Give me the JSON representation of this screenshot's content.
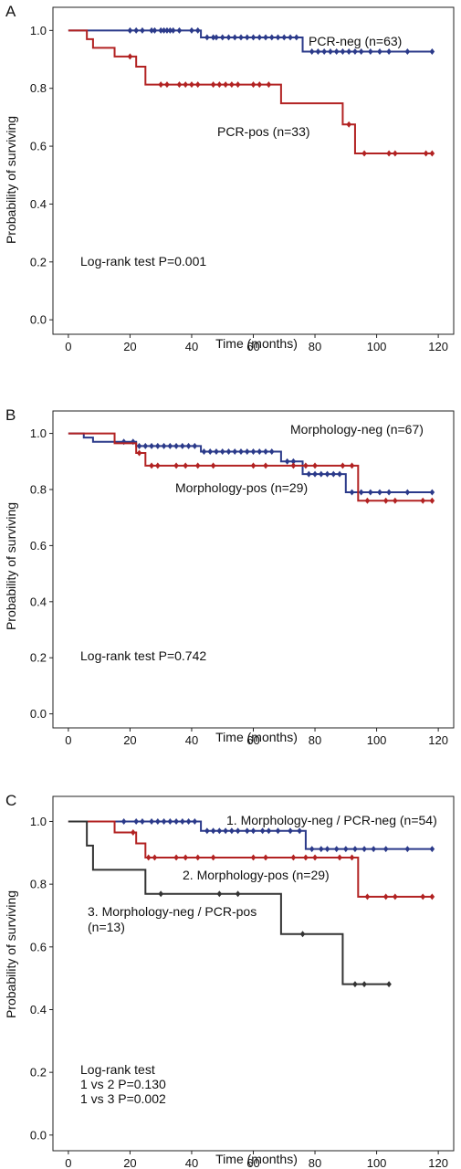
{
  "chart_data": [
    {
      "type": "line",
      "panel_label": "A",
      "xlabel": "Time (months)",
      "ylabel": "Probability of surviving",
      "xlim": [
        -5,
        125
      ],
      "ylim": [
        -0.05,
        1.08
      ],
      "xticks": [
        0,
        20,
        40,
        60,
        80,
        100,
        120
      ],
      "yticks": [
        0.0,
        0.2,
        0.4,
        0.6,
        0.8,
        1.0
      ],
      "xtick_labels": [
        "0",
        "20",
        "40",
        "60",
        "80",
        "100",
        "120"
      ],
      "ytick_labels": [
        "0.0",
        "0.2",
        "0.4",
        "0.6",
        "0.8",
        "1.0"
      ],
      "annotations": [
        "Log-rank test P=0.001"
      ],
      "series": [
        {
          "name": "PCR-neg (n=63)",
          "color": "#2b3a8a",
          "steps": [
            [
              0,
              1.0
            ],
            [
              43,
              0.976
            ],
            [
              76,
              0.927
            ],
            [
              118,
              0.927
            ]
          ],
          "censor": [
            20,
            22,
            24,
            27,
            28,
            30,
            31,
            32,
            33,
            34,
            36,
            40,
            42,
            45,
            47,
            48,
            50,
            52,
            54,
            56,
            58,
            60,
            62,
            64,
            66,
            68,
            70,
            72,
            74,
            79,
            81,
            83,
            85,
            87,
            89,
            91,
            93,
            95,
            98,
            101,
            104,
            110,
            118
          ]
        },
        {
          "name": "PCR-pos (n=33)",
          "color": "#b22222",
          "steps": [
            [
              0,
              1.0
            ],
            [
              6,
              0.97
            ],
            [
              8,
              0.94
            ],
            [
              15,
              0.91
            ],
            [
              22,
              0.875
            ],
            [
              25,
              0.813
            ],
            [
              69,
              0.748
            ],
            [
              89,
              0.675
            ],
            [
              93,
              0.575
            ],
            [
              118,
              0.575
            ]
          ],
          "censor": [
            20,
            30,
            32,
            36,
            38,
            40,
            42,
            47,
            49,
            51,
            53,
            55,
            60,
            62,
            65,
            91,
            96,
            104,
            106,
            116,
            118
          ]
        }
      ]
    },
    {
      "type": "line",
      "panel_label": "B",
      "xlabel": "Time (months)",
      "ylabel": "Probability of surviving",
      "xlim": [
        -5,
        125
      ],
      "ylim": [
        -0.05,
        1.08
      ],
      "xticks": [
        0,
        20,
        40,
        60,
        80,
        100,
        120
      ],
      "yticks": [
        0.0,
        0.2,
        0.4,
        0.6,
        0.8,
        1.0
      ],
      "xtick_labels": [
        "0",
        "20",
        "40",
        "60",
        "80",
        "100",
        "120"
      ],
      "ytick_labels": [
        "0.0",
        "0.2",
        "0.4",
        "0.6",
        "0.8",
        "1.0"
      ],
      "annotations": [
        "Log-rank test P=0.742"
      ],
      "series": [
        {
          "name": "Morphology-neg (n=67)",
          "color": "#2b3a8a",
          "steps": [
            [
              0,
              1.0
            ],
            [
              5,
              0.985
            ],
            [
              8,
              0.97
            ],
            [
              22,
              0.955
            ],
            [
              43,
              0.935
            ],
            [
              69,
              0.9
            ],
            [
              76,
              0.855
            ],
            [
              90,
              0.79
            ],
            [
              118,
              0.79
            ]
          ],
          "censor": [
            18,
            21,
            23,
            25,
            27,
            29,
            31,
            33,
            35,
            37,
            39,
            41,
            44,
            46,
            48,
            50,
            52,
            54,
            56,
            58,
            60,
            62,
            64,
            66,
            71,
            73,
            78,
            80,
            82,
            84,
            86,
            88,
            92,
            95,
            98,
            101,
            104,
            110,
            118
          ]
        },
        {
          "name": "Morphology-pos (n=29)",
          "color": "#b22222",
          "steps": [
            [
              0,
              1.0
            ],
            [
              15,
              0.965
            ],
            [
              22,
              0.93
            ],
            [
              25,
              0.885
            ],
            [
              69,
              0.885
            ],
            [
              94,
              0.76
            ],
            [
              118,
              0.76
            ]
          ],
          "censor": [
            23,
            27,
            29,
            35,
            38,
            42,
            47,
            60,
            64,
            73,
            77,
            80,
            89,
            92,
            97,
            103,
            106,
            115,
            118
          ]
        }
      ]
    },
    {
      "type": "line",
      "panel_label": "C",
      "xlabel": "Time (months)",
      "ylabel": "Probability of surviving",
      "xlim": [
        -5,
        125
      ],
      "ylim": [
        -0.05,
        1.08
      ],
      "xticks": [
        0,
        20,
        40,
        60,
        80,
        100,
        120
      ],
      "yticks": [
        0.0,
        0.2,
        0.4,
        0.6,
        0.8,
        1.0
      ],
      "xtick_labels": [
        "0",
        "20",
        "40",
        "60",
        "80",
        "100",
        "120"
      ],
      "ytick_labels": [
        "0.0",
        "0.2",
        "0.4",
        "0.6",
        "0.8",
        "1.0"
      ],
      "annotations": [
        "Log-rank test",
        "1 vs 2 P=0.130",
        "1 vs 3 P=0.002"
      ],
      "series": [
        {
          "name": "1. Morphology-neg / PCR-neg (n=54)",
          "color": "#2b3a8a",
          "steps": [
            [
              0,
              1.0
            ],
            [
              43,
              0.97
            ],
            [
              77,
              0.912
            ],
            [
              118,
              0.912
            ]
          ],
          "censor": [
            18,
            22,
            24,
            27,
            29,
            31,
            33,
            35,
            37,
            39,
            41,
            45,
            47,
            49,
            51,
            53,
            55,
            58,
            60,
            63,
            65,
            68,
            72,
            75,
            79,
            82,
            84,
            87,
            90,
            93,
            96,
            99,
            103,
            110,
            118
          ]
        },
        {
          "name": "2. Morphology-pos (n=29)",
          "color": "#b22222",
          "steps": [
            [
              0,
              1.0
            ],
            [
              15,
              0.965
            ],
            [
              22,
              0.93
            ],
            [
              25,
              0.885
            ],
            [
              69,
              0.885
            ],
            [
              94,
              0.76
            ],
            [
              118,
              0.76
            ]
          ],
          "censor": [
            21,
            26,
            28,
            35,
            38,
            42,
            47,
            60,
            64,
            73,
            77,
            80,
            88,
            92,
            97,
            103,
            106,
            115,
            118
          ]
        },
        {
          "name": "3. Morphology-neg / PCR-pos",
          "name_line2": "(n=13)",
          "color": "#333333",
          "steps": [
            [
              0,
              1.0
            ],
            [
              6,
              0.923
            ],
            [
              8,
              0.846
            ],
            [
              25,
              0.769
            ],
            [
              69,
              0.641
            ],
            [
              89,
              0.481
            ],
            [
              104,
              0.481
            ]
          ],
          "censor": [
            30,
            49,
            55,
            76,
            93,
            96,
            104
          ]
        }
      ]
    }
  ]
}
